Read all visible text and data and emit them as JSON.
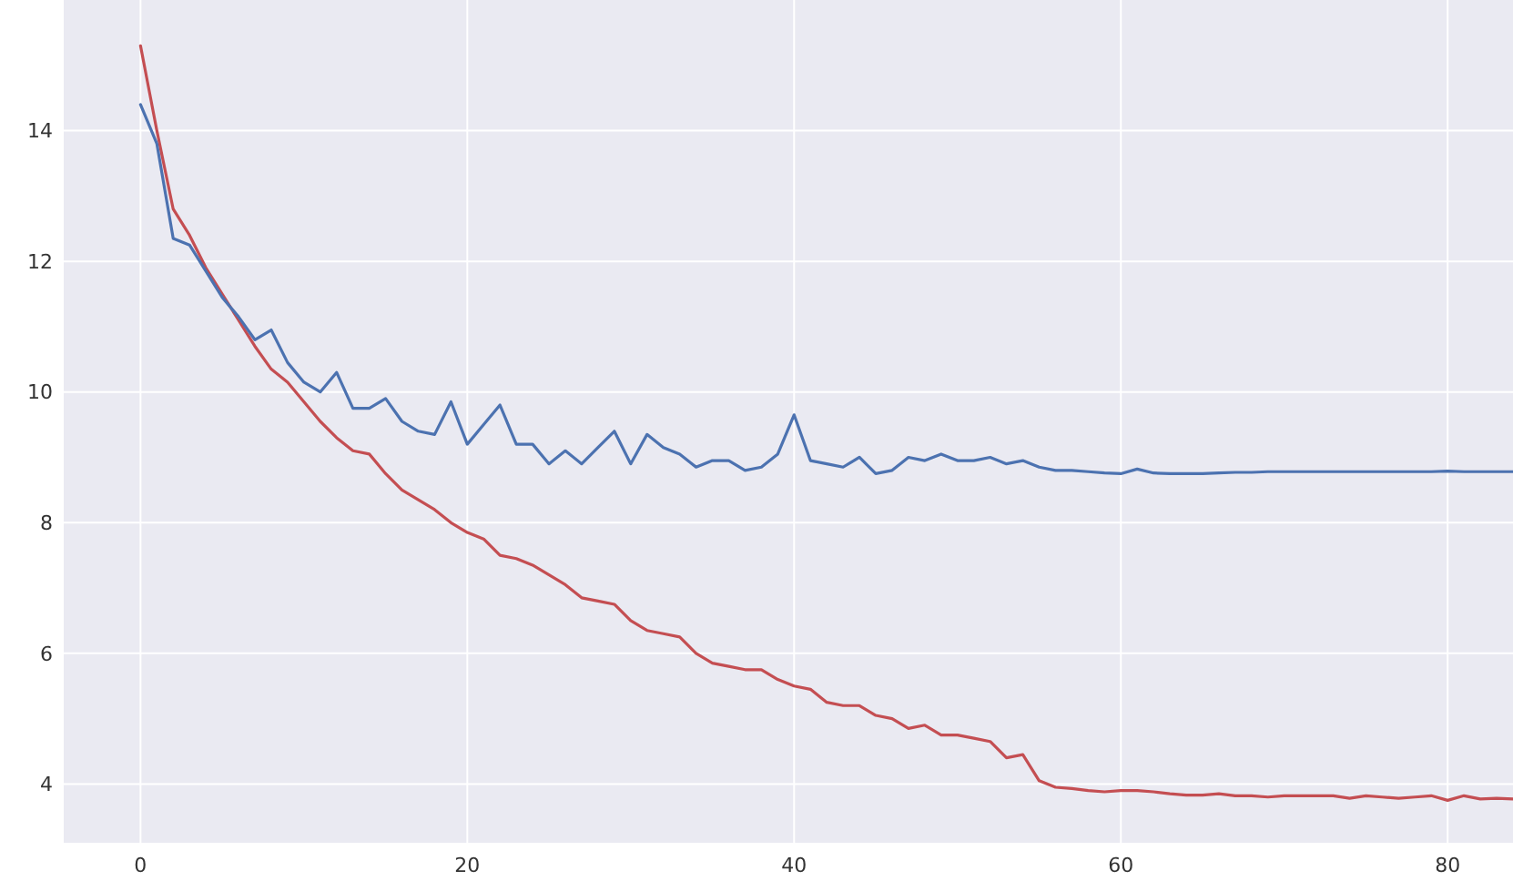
{
  "chart_data": {
    "type": "line",
    "grid": true,
    "marker": "none",
    "line_style": "solid",
    "x": [
      0,
      1,
      2,
      3,
      4,
      5,
      6,
      7,
      8,
      9,
      10,
      11,
      12,
      13,
      14,
      15,
      16,
      17,
      18,
      19,
      20,
      21,
      22,
      23,
      24,
      25,
      26,
      27,
      28,
      29,
      30,
      31,
      32,
      33,
      34,
      35,
      36,
      37,
      38,
      39,
      40,
      41,
      42,
      43,
      44,
      45,
      46,
      47,
      48,
      49,
      50,
      51,
      52,
      53,
      54,
      55,
      56,
      57,
      58,
      59,
      60,
      61,
      62,
      63,
      64,
      65,
      66,
      67,
      68,
      69,
      70,
      71,
      72,
      73,
      74,
      75,
      76,
      77,
      78,
      79,
      80,
      81,
      82,
      83,
      84
    ],
    "xlim": [
      -4.7,
      84
    ],
    "xticks": [
      0,
      20,
      40,
      60,
      80
    ],
    "ylim": [
      3.1,
      16.0
    ],
    "yticks": [
      4,
      6,
      8,
      10,
      12,
      14
    ],
    "series": [
      {
        "color": "#c44e52",
        "values": [
          15.3,
          14.0,
          12.8,
          12.4,
          11.9,
          11.5,
          11.1,
          10.7,
          10.35,
          10.15,
          9.85,
          9.55,
          9.3,
          9.1,
          9.05,
          8.75,
          8.5,
          8.35,
          8.2,
          8.0,
          7.85,
          7.75,
          7.5,
          7.45,
          7.35,
          7.2,
          7.05,
          6.85,
          6.8,
          6.75,
          6.5,
          6.35,
          6.3,
          6.25,
          6.0,
          5.85,
          5.8,
          5.75,
          5.75,
          5.6,
          5.5,
          5.45,
          5.25,
          5.2,
          5.2,
          5.05,
          5.0,
          4.85,
          4.9,
          4.75,
          4.75,
          4.7,
          4.65,
          4.4,
          4.45,
          4.05,
          3.95,
          3.93,
          3.9,
          3.88,
          3.9,
          3.9,
          3.88,
          3.85,
          3.83,
          3.83,
          3.85,
          3.82,
          3.82,
          3.8,
          3.82,
          3.82,
          3.82,
          3.82,
          3.78,
          3.82,
          3.8,
          3.78,
          3.8,
          3.82,
          3.75,
          3.82,
          3.77,
          3.78,
          3.77
        ]
      },
      {
        "color": "#4c72b0",
        "values": [
          14.4,
          13.8,
          12.35,
          12.25,
          11.85,
          11.45,
          11.15,
          10.8,
          10.95,
          10.45,
          10.15,
          10.0,
          10.3,
          9.75,
          9.75,
          9.9,
          9.55,
          9.4,
          9.35,
          9.85,
          9.2,
          9.5,
          9.8,
          9.2,
          9.2,
          8.9,
          9.1,
          8.9,
          9.15,
          9.4,
          8.9,
          9.35,
          9.15,
          9.05,
          8.85,
          8.95,
          8.95,
          8.8,
          8.85,
          9.05,
          9.65,
          8.95,
          8.9,
          8.85,
          9.0,
          8.75,
          8.8,
          9.0,
          8.95,
          9.05,
          8.95,
          8.95,
          9.0,
          8.9,
          8.95,
          8.85,
          8.8,
          8.8,
          8.78,
          8.76,
          8.75,
          8.82,
          8.76,
          8.75,
          8.75,
          8.75,
          8.76,
          8.77,
          8.77,
          8.78,
          8.78,
          8.78,
          8.78,
          8.78,
          8.78,
          8.78,
          8.78,
          8.78,
          8.78,
          8.78,
          8.79,
          8.78,
          8.78,
          8.78,
          8.78
        ]
      }
    ]
  }
}
